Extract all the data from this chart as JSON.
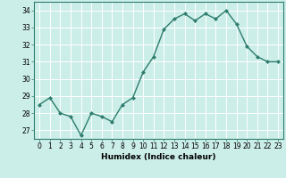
{
  "x": [
    0,
    1,
    2,
    3,
    4,
    5,
    6,
    7,
    8,
    9,
    10,
    11,
    12,
    13,
    14,
    15,
    16,
    17,
    18,
    19,
    20,
    21,
    22,
    23
  ],
  "y": [
    28.5,
    28.9,
    28.0,
    27.8,
    26.7,
    28.0,
    27.8,
    27.5,
    28.5,
    28.9,
    30.4,
    31.3,
    32.9,
    33.5,
    33.8,
    33.4,
    33.8,
    33.5,
    34.0,
    33.2,
    31.9,
    31.3,
    31.0,
    31.0
  ],
  "line_color": "#2e7d6e",
  "marker": "D",
  "marker_size": 2,
  "bg_color": "#cceee8",
  "grid_color": "#ffffff",
  "xlabel": "Humidex (Indice chaleur)",
  "ylabel": "",
  "xlim": [
    -0.5,
    23.5
  ],
  "ylim": [
    26.5,
    34.5
  ],
  "yticks": [
    27,
    28,
    29,
    30,
    31,
    32,
    33,
    34
  ],
  "xticks": [
    0,
    1,
    2,
    3,
    4,
    5,
    6,
    7,
    8,
    9,
    10,
    11,
    12,
    13,
    14,
    15,
    16,
    17,
    18,
    19,
    20,
    21,
    22,
    23
  ],
  "tick_fontsize": 5.5,
  "xlabel_fontsize": 6.5,
  "linewidth": 1.0
}
